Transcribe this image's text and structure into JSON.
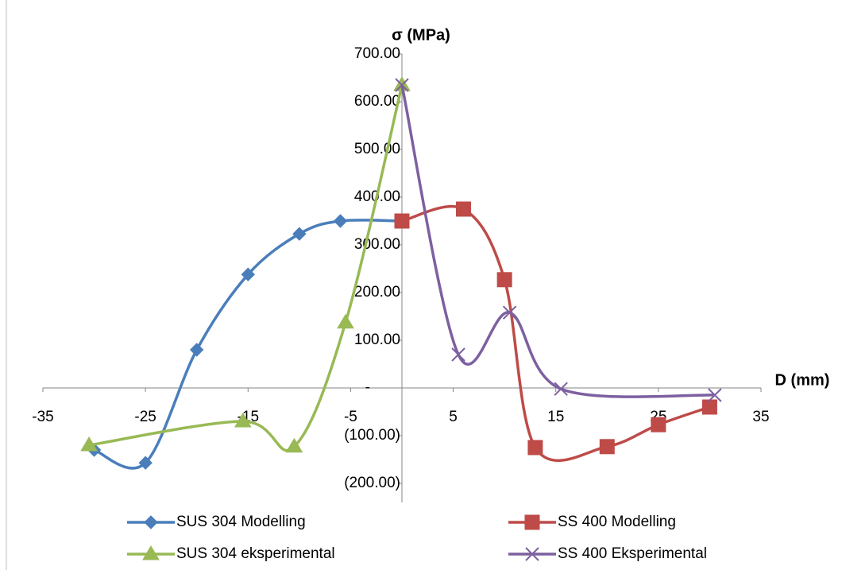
{
  "chart_data": {
    "type": "scatter-smooth",
    "y_axis_title": "σ (MPa)",
    "x_axis_title": "D (mm)",
    "xlim": [
      -35,
      35
    ],
    "xticks": [
      -35,
      -25,
      -15,
      -5,
      5,
      15,
      25,
      35
    ],
    "ylim": [
      -200,
      700
    ],
    "yticks": [
      {
        "value": -200,
        "label": "(200.00)"
      },
      {
        "value": -100,
        "label": "(100.00)"
      },
      {
        "value": 0,
        "label": "-"
      },
      {
        "value": 100,
        "label": "100.00"
      },
      {
        "value": 200,
        "label": "200.00"
      },
      {
        "value": 300,
        "label": "300.00"
      },
      {
        "value": 400,
        "label": "400.00"
      },
      {
        "value": 500,
        "label": "500.00"
      },
      {
        "value": 600,
        "label": "600.00"
      },
      {
        "value": 700,
        "label": "700.00"
      }
    ],
    "legend": "bottom",
    "series": [
      {
        "name": "SUS 304 Modelling",
        "color": "#4a7ebb",
        "marker": "diamond",
        "x": [
          -30,
          -25,
          -20,
          -15,
          -10,
          -6,
          0
        ],
        "values": [
          -130,
          -157,
          80,
          238,
          323,
          350,
          350
        ]
      },
      {
        "name": "SS 400 Modelling",
        "color": "#be4b48",
        "marker": "square",
        "x": [
          0,
          6,
          10,
          13,
          20,
          25,
          30
        ],
        "values": [
          350,
          375,
          227,
          -125,
          -123,
          -77,
          -40
        ]
      },
      {
        "name": "SUS 304 eksperimental",
        "color": "#98b954",
        "marker": "triangle",
        "x": [
          -30.5,
          -15.5,
          -10.5,
          -5.5,
          0
        ],
        "values": [
          -120,
          -70,
          -123,
          137,
          635
        ]
      },
      {
        "name": "SS 400 Eksperimental",
        "color": "#7d60a0",
        "marker": "cross",
        "x": [
          0,
          5.5,
          10.5,
          15.5,
          30.5
        ],
        "values": [
          635,
          70,
          158,
          -2,
          -15
        ]
      }
    ]
  }
}
